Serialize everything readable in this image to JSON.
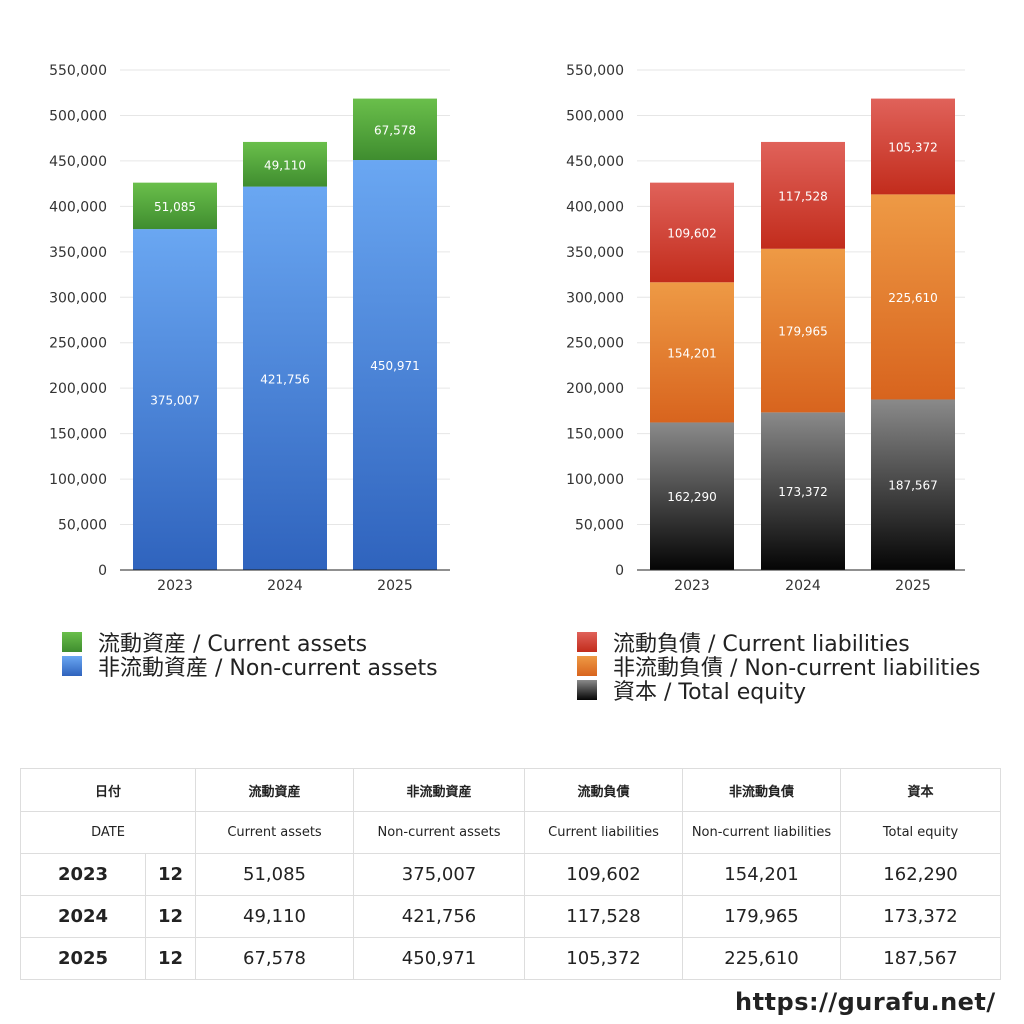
{
  "chart_data": [
    {
      "type": "bar",
      "stacked": true,
      "categories": [
        "2023",
        "2024",
        "2025"
      ],
      "series": [
        {
          "name": "非流動資産 / Non-current assets",
          "values": [
            375007,
            421756,
            450971
          ],
          "color": "#3b78d0"
        },
        {
          "name": "流動資産 / Current assets",
          "values": [
            51085,
            49110,
            67578
          ],
          "color": "#4e9a3a"
        }
      ],
      "ylim": [
        0,
        550000
      ],
      "yticks": [
        0,
        50000,
        100000,
        150000,
        200000,
        250000,
        300000,
        350000,
        400000,
        450000,
        500000,
        550000
      ],
      "ytick_labels": [
        "0",
        "50,000",
        "100,000",
        "150,000",
        "200,000",
        "250,000",
        "300,000",
        "350,000",
        "400,000",
        "450,000",
        "500,000",
        "550,000"
      ],
      "grid": true,
      "legend": "bottom"
    },
    {
      "type": "bar",
      "stacked": true,
      "categories": [
        "2023",
        "2024",
        "2025"
      ],
      "series": [
        {
          "name": "資本 / Total equity",
          "values": [
            162290,
            173372,
            187567
          ],
          "color": "#333333"
        },
        {
          "name": "非流動負債 / Non-current liabilities",
          "values": [
            154201,
            179965,
            225610
          ],
          "color": "#e07a2a"
        },
        {
          "name": "流動負債 / Current liabilities",
          "values": [
            109602,
            117528,
            105372
          ],
          "color": "#cc3a2a"
        }
      ],
      "ylim": [
        0,
        550000
      ],
      "yticks": [
        0,
        50000,
        100000,
        150000,
        200000,
        250000,
        300000,
        350000,
        400000,
        450000,
        500000,
        550000
      ],
      "ytick_labels": [
        "0",
        "50,000",
        "100,000",
        "150,000",
        "200,000",
        "250,000",
        "300,000",
        "350,000",
        "400,000",
        "450,000",
        "500,000",
        "550,000"
      ],
      "grid": true,
      "legend": "bottom"
    }
  ],
  "legend_left": [
    {
      "label": "流動資産 / Current assets",
      "color": "#4e9a3a"
    },
    {
      "label": "非流動資産 / Non-current assets",
      "color": "#3b78d0"
    }
  ],
  "legend_right": [
    {
      "label": "流動負債 / Current liabilities",
      "color": "#cc3a2a"
    },
    {
      "label": "非流動負債 / Non-current liabilities",
      "color": "#e07a2a"
    },
    {
      "label": "資本 / Total equity",
      "color": "#333333"
    }
  ],
  "table": {
    "header_jp": [
      "日付",
      "流動資産",
      "非流動資産",
      "流動負債",
      "非流動負債",
      "資本"
    ],
    "header_en": [
      "DATE",
      "Current assets",
      "Non-current assets",
      "Current liabilities",
      "Non-current liabilities",
      "Total equity"
    ],
    "rows": [
      {
        "year": "2023",
        "month": "12",
        "values": [
          "51,085",
          "375,007",
          "109,602",
          "154,201",
          "162,290"
        ]
      },
      {
        "year": "2024",
        "month": "12",
        "values": [
          "49,110",
          "421,756",
          "117,528",
          "179,965",
          "173,372"
        ]
      },
      {
        "year": "2025",
        "month": "12",
        "values": [
          "67,578",
          "450,971",
          "105,372",
          "225,610",
          "187,567"
        ]
      }
    ]
  },
  "footer": "https://gurafu.net/"
}
